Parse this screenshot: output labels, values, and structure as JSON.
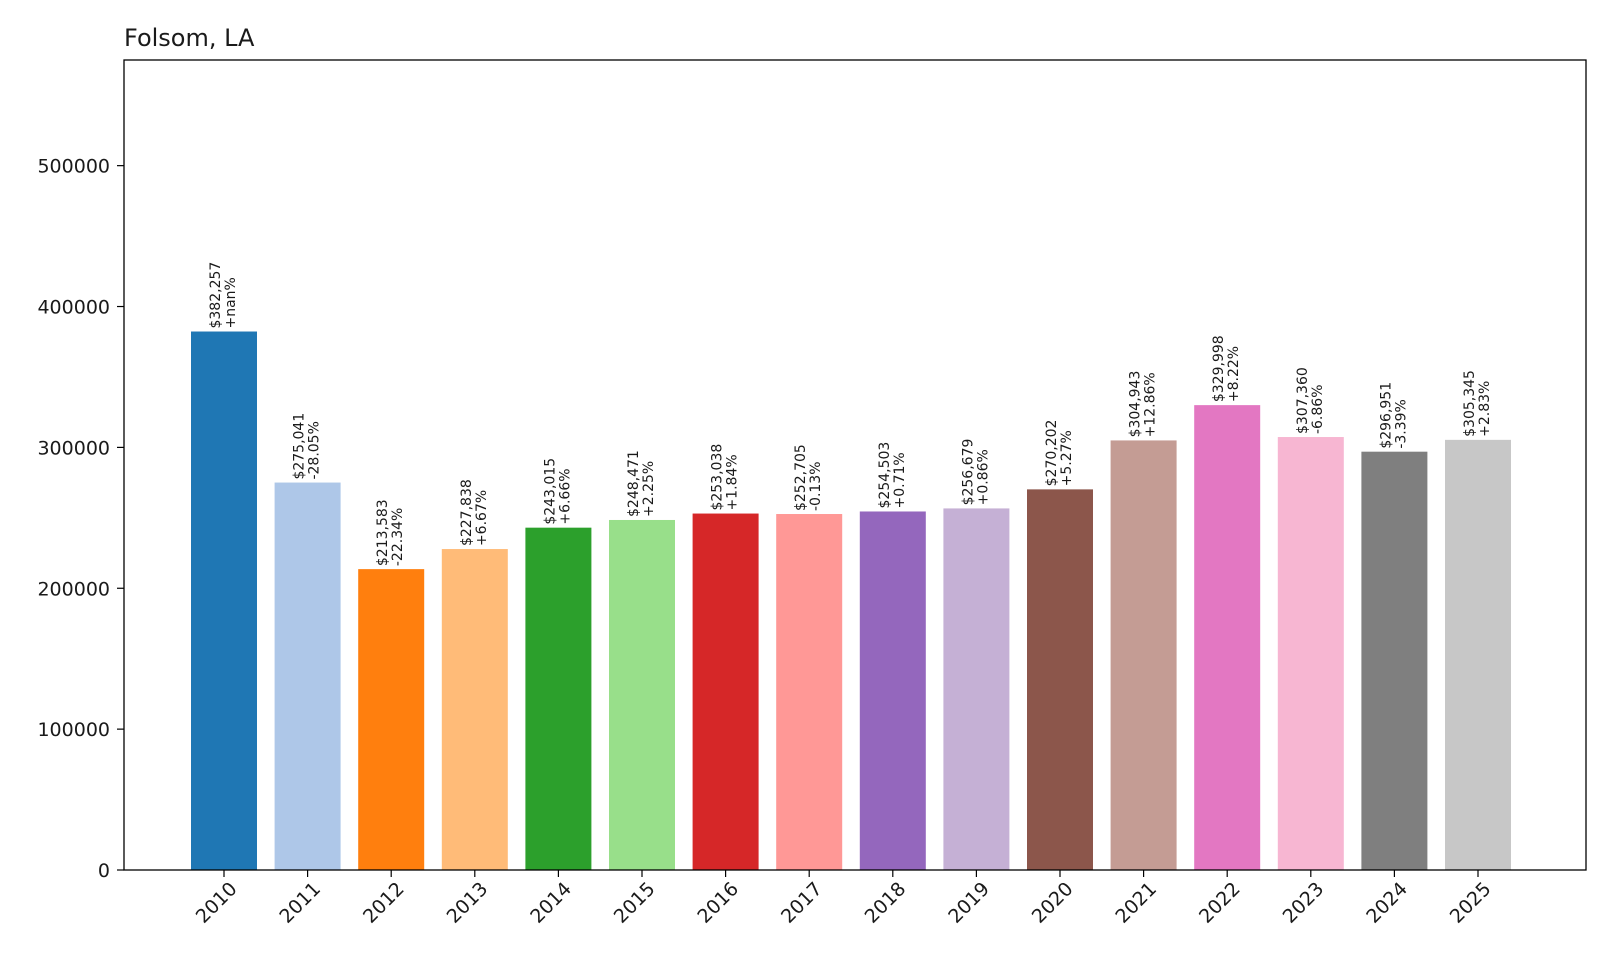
{
  "chart_data": {
    "type": "bar",
    "title": "Folsom, LA",
    "xlabel": "",
    "ylabel": "",
    "ylim": [
      0,
      575000
    ],
    "yticks": [
      0,
      100000,
      200000,
      300000,
      400000,
      500000
    ],
    "ytick_labels": [
      "0",
      "100000",
      "200000",
      "300000",
      "400000",
      "500000"
    ],
    "grid": false,
    "categories": [
      "2010",
      "2011",
      "2012",
      "2013",
      "2014",
      "2015",
      "2016",
      "2017",
      "2018",
      "2019",
      "2020",
      "2021",
      "2022",
      "2023",
      "2024",
      "2025"
    ],
    "values": [
      382257,
      275041,
      213583,
      227838,
      243015,
      248471,
      253038,
      252705,
      254503,
      256679,
      270202,
      304943,
      329998,
      307360,
      296951,
      305345
    ],
    "value_labels": [
      "$382,257",
      "$275,041",
      "$213,583",
      "$227,838",
      "$243,015",
      "$248,471",
      "$253,038",
      "$252,705",
      "$254,503",
      "$256,679",
      "$270,202",
      "$304,943",
      "$329,998",
      "$307,360",
      "$296,951",
      "$305,345"
    ],
    "change_labels": [
      "+nan%",
      "-28.05%",
      "-22.34%",
      "+6.67%",
      "+6.66%",
      "+2.25%",
      "+1.84%",
      "-0.13%",
      "+0.71%",
      "+0.86%",
      "+5.27%",
      "+12.86%",
      "+8.22%",
      "-6.86%",
      "-3.39%",
      "+2.83%"
    ],
    "colors": [
      "#1f77b4",
      "#aec7e8",
      "#ff7f0e",
      "#ffbb78",
      "#2ca02c",
      "#98df8a",
      "#d62728",
      "#ff9896",
      "#9467bd",
      "#c5b0d5",
      "#8c564b",
      "#c49c94",
      "#e377c2",
      "#f7b6d2",
      "#7f7f7f",
      "#c7c7c7"
    ]
  }
}
